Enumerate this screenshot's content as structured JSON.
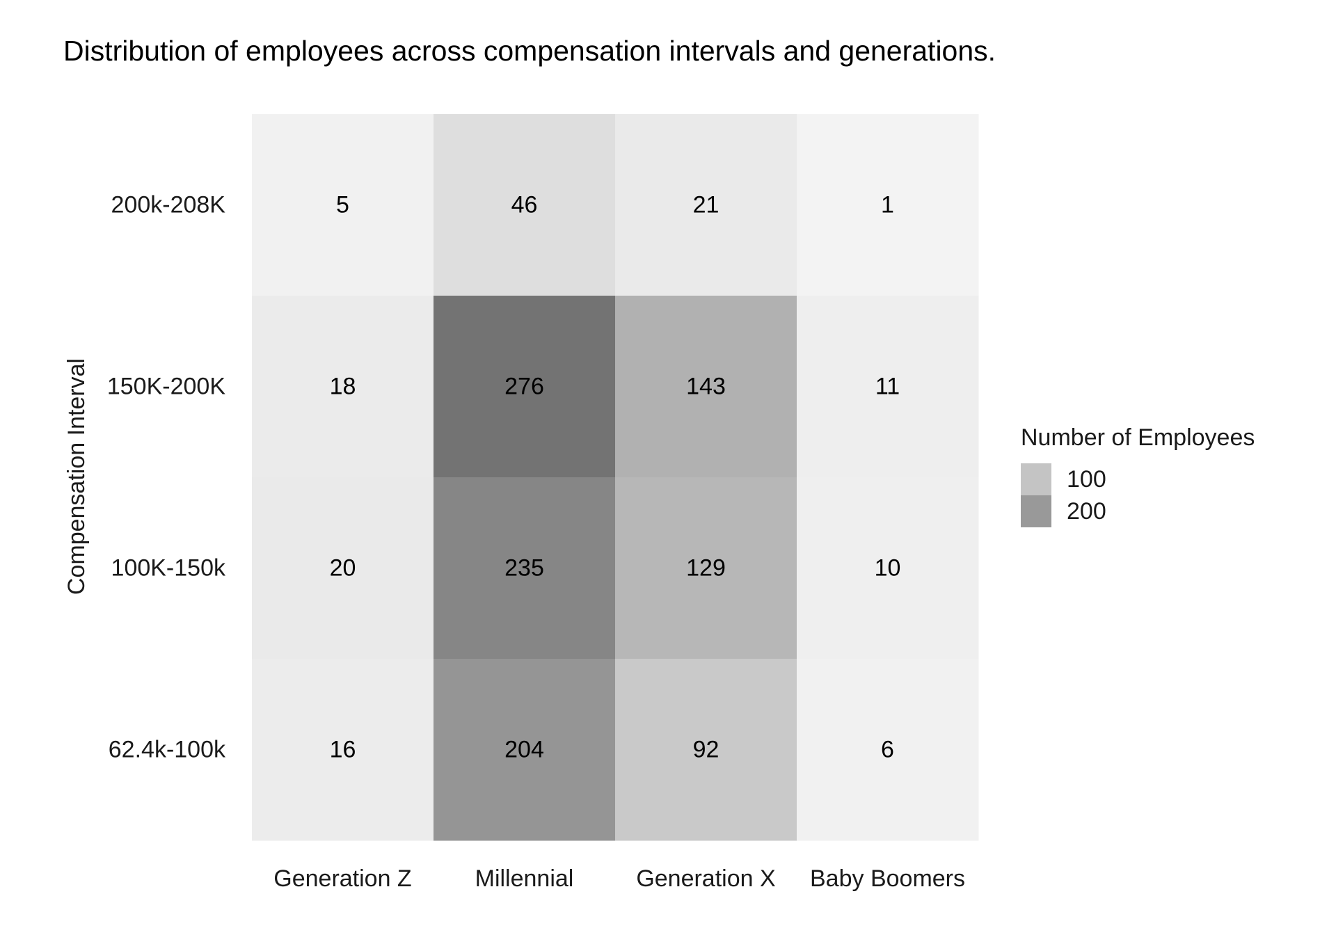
{
  "chart_data": {
    "type": "heatmap",
    "title": "Distribution of employees across compensation intervals and generations.",
    "xlabel": "",
    "ylabel": "Compensation Interval",
    "x_categories": [
      "Generation Z",
      "Millennial",
      "Generation X",
      "Baby Boomers"
    ],
    "y_categories": [
      "200k-208K",
      "150K-200K",
      "100K-150k",
      "62.4k-100k"
    ],
    "values": [
      [
        5,
        46,
        21,
        1
      ],
      [
        18,
        276,
        143,
        11
      ],
      [
        20,
        235,
        129,
        10
      ],
      [
        16,
        204,
        92,
        6
      ]
    ],
    "color_scale": {
      "low": "#f3f3f3",
      "high": "#737373",
      "min": 1,
      "max": 276
    },
    "legend": {
      "title": "Number of Employees",
      "position": "right",
      "entries": [
        {
          "label": "100",
          "color": "#c4c4c4"
        },
        {
          "label": "200",
          "color": "#999999"
        }
      ]
    },
    "grid": false
  }
}
